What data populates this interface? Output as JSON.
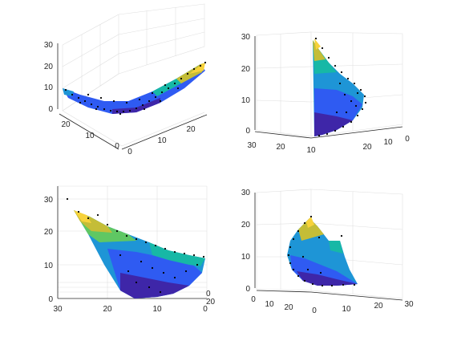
{
  "figure": {
    "background": "#ffffff"
  },
  "colormap": [
    "#3e26a8",
    "#2f5bf2",
    "#1e95d6",
    "#17b8a6",
    "#5fc763",
    "#c4bd37",
    "#f7d23a"
  ],
  "chart_data": [
    {
      "type": "3d-surface-scatter",
      "view": "perspective-front",
      "z_ticks": [
        "0",
        "10",
        "20",
        "30"
      ],
      "x_ticks": [
        "0",
        "10",
        "20"
      ],
      "y_ticks": [
        "0",
        "10",
        "20"
      ],
      "zlim": [
        0,
        30
      ],
      "xlim": [
        0,
        27
      ],
      "ylim": [
        0,
        27
      ],
      "grid": true
    },
    {
      "type": "3d-surface-scatter",
      "view": "side-right",
      "z_ticks": [
        "0",
        "10",
        "20",
        "30"
      ],
      "x_ticks": [
        "30",
        "20",
        "10"
      ],
      "y_ticks": [
        "20",
        "10",
        "0"
      ],
      "zlim": [
        0,
        30
      ],
      "grid": true
    },
    {
      "type": "3d-surface-scatter",
      "view": "front-flat",
      "z_ticks": [
        "0",
        "10",
        "20",
        "30"
      ],
      "x_ticks": [
        "30",
        "20",
        "10",
        "0"
      ],
      "y_ticks": [
        "0",
        "20"
      ],
      "zlim": [
        0,
        30
      ],
      "grid": true
    },
    {
      "type": "3d-surface-scatter",
      "view": "perspective-back",
      "z_ticks": [
        "0",
        "10",
        "20",
        "30"
      ],
      "x_ticks": [
        "0",
        "10",
        "20",
        "30"
      ],
      "y_ticks": [
        "0",
        "10",
        "20"
      ],
      "zlim": [
        0,
        30
      ],
      "grid": true
    }
  ]
}
